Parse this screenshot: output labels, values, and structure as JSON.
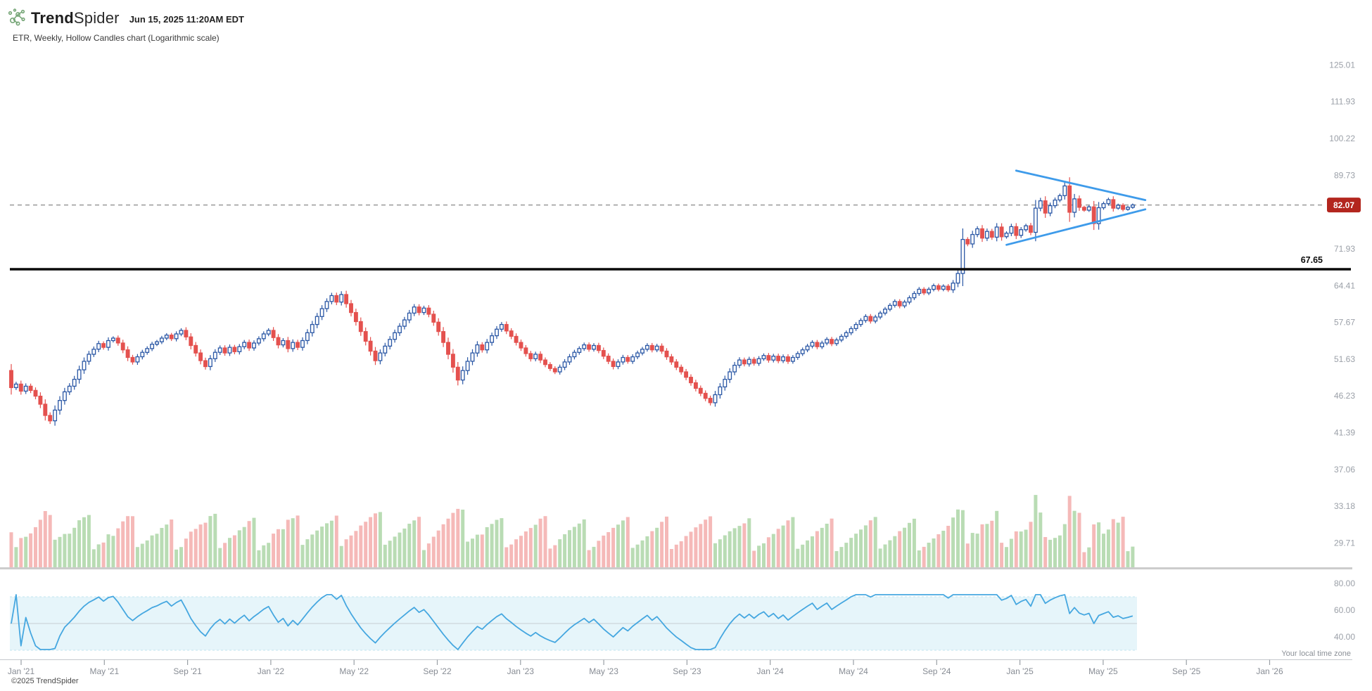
{
  "header": {
    "brand_bold": "Trend",
    "brand_light": "Spider",
    "timestamp": "Jun 15, 2025 11:20AM EDT",
    "subtitle": "ETR, Weekly, Hollow Candles chart (Logarithmic scale)"
  },
  "footer": {
    "copyright": "©2025 TrendSpider",
    "timezone_note": "Your local time zone"
  },
  "colors": {
    "candle_up": "#2a57a5",
    "candle_down": "#e4514e",
    "volume_up": "#b9dcb4",
    "volume_down": "#f5b9b8",
    "rsi_line": "#45a7e0",
    "rsi_band_fill": "#e6f5fa",
    "rsi_band_edge": "#c2e4ef",
    "rsi_midline": "#ccd5db",
    "pattern_blue": "#3e9bea",
    "level_black": "#0a0a0a",
    "dashed_gray": "#a6a6a6",
    "axis_text": "#9ba0a8",
    "time_text": "#878c94",
    "badge_bg": "#b3261e",
    "badge_text": "#ffffff",
    "separator_gray": "#cccccc"
  },
  "chart_data": {
    "type": "candlestick",
    "symbol": "ETR",
    "timeframe": "Weekly",
    "style": "Hollow Candles",
    "scale": "Logarithmic",
    "start_week": "2020-12-28",
    "first_open": 49.9,
    "closes": [
      47.4,
      47.9,
      46.9,
      47.6,
      47.0,
      46.2,
      45.1,
      43.6,
      42.9,
      44.3,
      45.6,
      46.8,
      47.6,
      48.6,
      50.0,
      51.3,
      52.4,
      53.2,
      54.1,
      53.5,
      54.6,
      55.0,
      54.2,
      53.1,
      51.9,
      51.2,
      52.0,
      52.7,
      53.3,
      54.0,
      54.4,
      55.0,
      55.5,
      54.9,
      55.7,
      56.3,
      55.2,
      53.8,
      52.6,
      51.4,
      50.5,
      51.7,
      52.7,
      53.4,
      52.6,
      53.5,
      52.8,
      53.6,
      54.3,
      53.4,
      54.2,
      54.9,
      55.7,
      56.3,
      55.1,
      53.9,
      54.6,
      53.3,
      54.3,
      53.5,
      54.6,
      55.9,
      57.3,
      58.7,
      60.1,
      61.4,
      62.5,
      61.3,
      62.7,
      61.0,
      59.4,
      57.8,
      56.1,
      54.5,
      52.9,
      51.4,
      52.6,
      53.7,
      54.8,
      55.9,
      57.0,
      58.1,
      59.3,
      60.4,
      59.4,
      60.2,
      59.1,
      57.7,
      56.1,
      54.3,
      52.4,
      50.4,
      48.5,
      49.9,
      51.3,
      52.6,
      53.9,
      53.1,
      54.3,
      55.4,
      56.5,
      57.3,
      56.2,
      55.3,
      54.3,
      53.4,
      52.5,
      51.7,
      52.4,
      51.5,
      50.8,
      50.2,
      49.7,
      50.4,
      51.2,
      52.0,
      52.7,
      53.3,
      53.9,
      53.2,
      53.8,
      53.0,
      52.1,
      51.3,
      50.5,
      51.2,
      51.9,
      51.3,
      52.0,
      52.6,
      53.2,
      53.8,
      53.1,
      53.7,
      52.9,
      52.0,
      51.2,
      50.4,
      49.7,
      48.9,
      48.1,
      47.3,
      46.6,
      45.9,
      45.3,
      46.4,
      47.5,
      48.6,
      49.7,
      50.7,
      51.5,
      50.9,
      51.6,
      51.0,
      51.7,
      52.2,
      51.5,
      52.1,
      51.4,
      52.0,
      51.3,
      51.9,
      52.5,
      53.1,
      53.7,
      54.3,
      53.6,
      54.2,
      54.8,
      54.1,
      54.7,
      55.3,
      55.9,
      56.6,
      57.3,
      58.0,
      58.7,
      57.9,
      58.6,
      59.3,
      60.0,
      60.7,
      61.4,
      60.6,
      61.3,
      62.1,
      62.9,
      63.7,
      63.0,
      63.7,
      64.4,
      63.7,
      64.3,
      63.6,
      64.9,
      66.8,
      74.0,
      73.0,
      75.1,
      76.4,
      74.3,
      75.8,
      74.5,
      76.8,
      74.6,
      75.4,
      76.9,
      74.9,
      76.2,
      77.1,
      75.6,
      81.3,
      83.1,
      80.1,
      81.9,
      83.3,
      84.4,
      86.9,
      80.3,
      83.6,
      81.5,
      80.8,
      81.6,
      77.6,
      81.4,
      82.4,
      83.4,
      81.3,
      82.0,
      81.0,
      81.5,
      82.07
    ],
    "levels": {
      "last_price": "82.07",
      "last_price_value": 82.07,
      "support_label": "67.65",
      "support_value": 67.65
    },
    "price_axis_labels": [
      "125.01",
      "111.93",
      "100.22",
      "89.73",
      "71.93",
      "64.41",
      "57.67",
      "51.63",
      "46.23",
      "41.39",
      "37.06",
      "33.18",
      "29.71"
    ],
    "price_axis_values": [
      125.01,
      111.93,
      100.22,
      89.73,
      71.93,
      64.41,
      57.67,
      51.63,
      46.23,
      41.39,
      37.06,
      33.18,
      29.71
    ],
    "time_axis_labels": [
      "Jan '21",
      "May '21",
      "Sep '21",
      "Jan '22",
      "May '22",
      "Sep '22",
      "Jan '23",
      "May '23",
      "Sep '23",
      "Jan '24",
      "May '24",
      "Sep '24",
      "Jan '25",
      "May '25",
      "Sep '25",
      "Jan '26"
    ],
    "pattern": {
      "name": "symmetrical-triangle",
      "upper": {
        "w1": 207,
        "p1": 91.0,
        "w2": 233.6,
        "p2": 83.3
      },
      "lower": {
        "w1": 205,
        "p1": 72.8,
        "w2": 233.6,
        "p2": 81.0
      }
    },
    "rsi": {
      "period": 14,
      "upper_band": 70,
      "lower_band": 30,
      "midline": 50,
      "axis_labels": [
        "80.00",
        "60.00",
        "40.00"
      ],
      "axis_values": [
        80,
        60,
        40
      ]
    }
  }
}
